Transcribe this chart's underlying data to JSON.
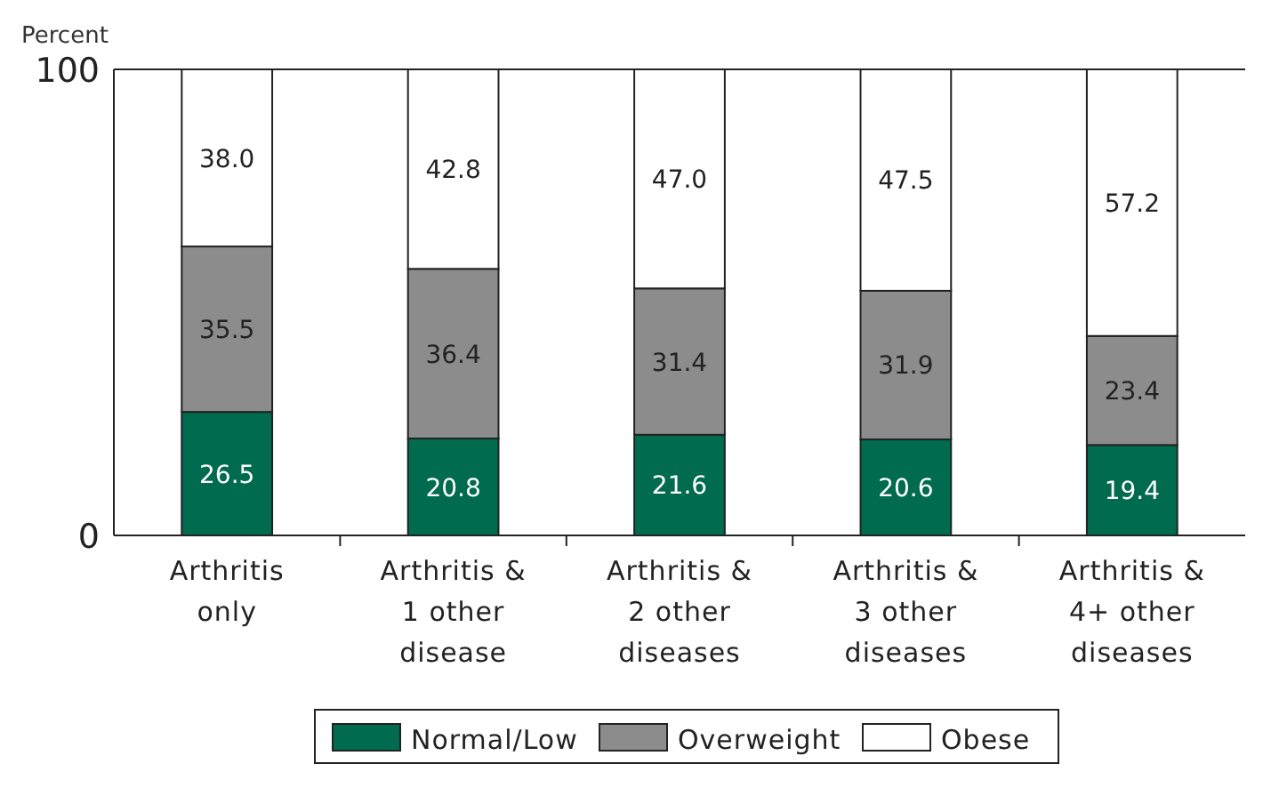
{
  "chart_data": {
    "type": "bar",
    "stacked": true,
    "ylabel": "Percent",
    "categories": [
      "Arthritis\nonly",
      "Arthritis &\n1 other\ndisease",
      "Arthritis &\n2 other\ndiseases",
      "Arthritis &\n3 other\ndiseases",
      "Arthritis &\n4+ other\ndiseases"
    ],
    "series": [
      {
        "name": "Normal/Low",
        "color": "#006b4f",
        "values": [
          26.5,
          20.8,
          21.6,
          20.6,
          19.4
        ],
        "value_labels": [
          "26.5",
          "20.8",
          "21.6",
          "20.6",
          "19.4"
        ]
      },
      {
        "name": "Overweight",
        "color": "#8c8c8c",
        "values": [
          35.5,
          36.4,
          31.4,
          31.9,
          23.4
        ],
        "value_labels": [
          "35.5",
          "36.4",
          "31.4",
          "31.9",
          "23.4"
        ]
      },
      {
        "name": "Obese",
        "color": "#ffffff",
        "values": [
          38,
          42.8,
          47,
          47.5,
          57.2
        ],
        "value_labels": [
          "38.0",
          "42.8",
          "47.0",
          "47.5",
          "57.2"
        ]
      }
    ],
    "ylim": [
      0,
      100
    ],
    "yticks": [
      0,
      100
    ],
    "legend": "bottom"
  }
}
